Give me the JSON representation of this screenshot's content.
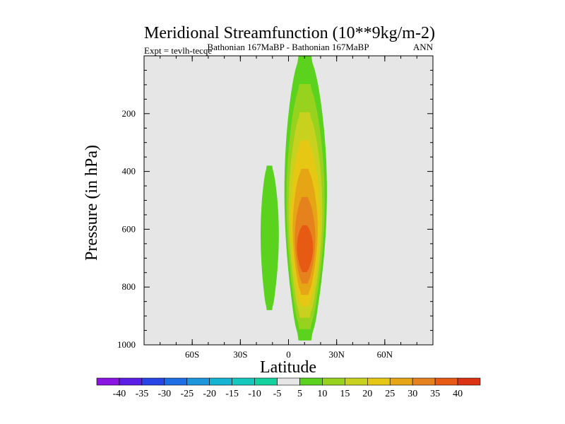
{
  "chart_data": {
    "type": "contour",
    "title": "Meridional Streamfunction (10**9kg/m-2)",
    "subtitle_left": "Expt = tevlh-tecqe",
    "subtitle_center": "Bathonian 167MaBP - Bathonian 167MaBP",
    "subtitle_right": "ANN",
    "xlabel": "Latitude",
    "ylabel": "Pressure (in hPa)",
    "xlim": [
      -90,
      90
    ],
    "ylim": [
      0,
      1000
    ],
    "y_inverted": true,
    "x_ticks": [
      {
        "value": -60,
        "label": "60S"
      },
      {
        "value": -30,
        "label": "30S"
      },
      {
        "value": 0,
        "label": "0"
      },
      {
        "value": 30,
        "label": "30N"
      },
      {
        "value": 60,
        "label": "60N"
      }
    ],
    "y_ticks": [
      {
        "value": 200,
        "label": "200"
      },
      {
        "value": 400,
        "label": "400"
      },
      {
        "value": 600,
        "label": "600"
      },
      {
        "value": 800,
        "label": "800"
      },
      {
        "value": 1000,
        "label": "1000"
      }
    ],
    "background_color": "#e6e6e6",
    "colorbar": {
      "labels": [
        "-40",
        "-35",
        "-30",
        "-25",
        "-20",
        "-15",
        "-10",
        "-5",
        "5",
        "10",
        "15",
        "20",
        "25",
        "30",
        "35",
        "40"
      ],
      "colors": [
        "#8a14e0",
        "#5a1ee6",
        "#2846e6",
        "#1e6ee6",
        "#1e96dc",
        "#14b4d2",
        "#14c8be",
        "#14d2a0",
        "#e6e6e6",
        "#5ad21e",
        "#96d21e",
        "#c8d21e",
        "#e6c814",
        "#e6a514",
        "#e6821e",
        "#e65a14",
        "#dc3214"
      ],
      "bins": [
        {
          "value": 5,
          "color": "#5ad21e"
        },
        {
          "value": 10,
          "color": "#96d21e"
        },
        {
          "value": 15,
          "color": "#c8d21e"
        },
        {
          "value": 20,
          "color": "#e6c814"
        },
        {
          "value": 25,
          "color": "#e6a514"
        },
        {
          "value": 30,
          "color": "#e6821e"
        },
        {
          "value": 35,
          "color": "#e65a14"
        },
        {
          "value": 40,
          "color": "#dc3214"
        }
      ]
    },
    "cells": [
      {
        "name": "northern-hadley-cell",
        "center_lat": 10,
        "center_p": 680,
        "half_width_lat": 14,
        "top_p": 0,
        "bottom_p": 985,
        "max_value": 37
      },
      {
        "name": "southern-extension",
        "center_lat": -12,
        "center_p": 620,
        "half_width_lat": 6,
        "top_p": 380,
        "bottom_p": 880,
        "max_value": 6
      }
    ]
  }
}
